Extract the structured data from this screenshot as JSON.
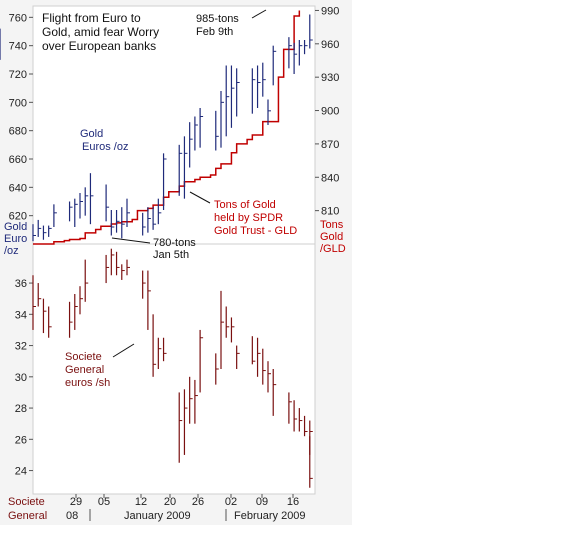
{
  "colors": {
    "panel_bg": "#f4f4f4",
    "frame": "#cfcfcf",
    "gold": "#1f2a7a",
    "gld_line": "#c00000",
    "socgen": "#7a1010",
    "text": "#111111",
    "axis_text": "#222222"
  },
  "chart_data": [
    {
      "type": "line",
      "title": "Flight from Euro to Gold, amid fear Worry over European banks",
      "title_lines": [
        "Flight from Euro to",
        "Gold, amid fear Worry",
        "over European banks"
      ],
      "left_axis_label_lines": [
        "Gold",
        "Euro",
        "/oz"
      ],
      "right_axis_label_lines": [
        "Tons",
        "Gold",
        "/GLD"
      ],
      "ylim_left": [
        600,
        768
      ],
      "ylim_right": [
        780,
        994
      ],
      "yticks_left": [
        620,
        640,
        660,
        680,
        700,
        720,
        740,
        760
      ],
      "yticks_right": [
        810,
        840,
        870,
        900,
        930,
        960,
        990
      ],
      "series": [
        {
          "name": "Gold Euros /oz",
          "label_lines": [
            "Gold",
            "Euros /oz"
          ],
          "style": "hlc",
          "values": [
            [
              602,
              614,
              606
            ],
            [
              605,
              617,
              611
            ],
            [
              603,
              613,
              608
            ],
            [
              605,
              613,
              611
            ],
            [
              612,
              628,
              622
            ],
            [
              616,
              630,
              626
            ],
            [
              612,
              632,
              628
            ],
            [
              618,
              636,
              630
            ],
            [
              620,
              640,
              634
            ],
            [
              614,
              650,
              634
            ],
            [
              616,
              642,
              626
            ],
            [
              606,
              624,
              612
            ],
            [
              608,
              624,
              616
            ],
            [
              604,
              626,
              614
            ],
            [
              612,
              632,
              622
            ],
            [
              606,
              622,
              612
            ],
            [
              608,
              626,
              618
            ],
            [
              610,
              626,
              614
            ],
            [
              614,
              632,
              622
            ],
            [
              624,
              664,
              660
            ],
            [
              634,
              670,
              664
            ],
            [
              632,
              676,
              664
            ],
            [
              654,
              686,
              674
            ],
            [
              666,
              690,
              684
            ],
            [
              668,
              696,
              690
            ],
            [
              666,
              694,
              676
            ],
            [
              668,
              708,
              700
            ],
            [
              676,
              726,
              704
            ],
            [
              682,
              726,
              710
            ],
            [
              690,
              724,
              714
            ],
            [
              692,
              724,
              716
            ],
            [
              696,
              726,
              714
            ],
            [
              704,
              728,
              716
            ],
            [
              684,
              702,
              694
            ],
            [
              712,
              740,
              736
            ],
            [
              724,
              746,
              740
            ],
            [
              720,
              742,
              734
            ],
            [
              726,
              744,
              740
            ],
            [
              734,
              744,
              740
            ],
            [
              738,
              762,
              744
            ],
            [
              730,
              752,
              736
            ]
          ]
        },
        {
          "name": "Tons of Gold held by SPDR Gold Trust - GLD",
          "label_lines": [
            "Tons of Gold",
            "held by SPDR",
            "Gold Trust - GLD"
          ],
          "style": "step",
          "values": [
            780,
            780,
            780,
            782,
            783,
            784,
            785,
            790,
            793,
            796,
            798,
            799,
            800,
            802,
            810,
            812,
            815,
            822,
            827,
            832,
            836,
            838,
            840,
            842,
            848,
            852,
            862,
            870,
            874,
            878,
            890,
            890,
            930,
            955,
            985,
            990
          ]
        }
      ],
      "annotations": [
        {
          "text_lines": [
            "985-tons",
            "Feb 9th"
          ],
          "value": 985
        },
        {
          "text_lines": [
            "780-tons",
            "Jan 5th"
          ],
          "value": 780
        }
      ]
    },
    {
      "type": "line",
      "ylim": [
        22.5,
        38.5
      ],
      "yticks": [
        24,
        26,
        28,
        30,
        32,
        34,
        36
      ],
      "series": [
        {
          "name": "Societe General euros /sh",
          "label_lines": [
            "Societe",
            "General",
            "euros /sh"
          ],
          "style": "hlc",
          "values": [
            [
              33,
              36.5,
              34.5
            ],
            [
              34.5,
              36,
              35
            ],
            [
              32.8,
              35,
              34.2
            ],
            [
              32.5,
              34.5,
              33.2
            ],
            [
              32.5,
              34.8,
              33.5
            ],
            [
              33,
              35.3,
              34.5
            ],
            [
              34,
              35.8,
              35
            ],
            [
              34.8,
              37.5,
              36
            ],
            [
              36,
              37.8,
              37
            ],
            [
              36.5,
              38.2,
              37.8
            ],
            [
              36.5,
              38,
              37
            ],
            [
              36.2,
              37.2,
              36.8
            ],
            [
              36.5,
              37.5,
              37
            ],
            [
              35,
              36.8,
              36
            ],
            [
              33,
              36.8,
              35.5
            ],
            [
              30,
              34,
              30.8
            ],
            [
              30.5,
              32.5,
              31.8
            ],
            [
              31,
              32.5,
              31.5
            ],
            [
              24.5,
              29,
              27.2
            ],
            [
              25,
              29.2,
              28
            ],
            [
              27,
              30,
              28.6
            ],
            [
              27,
              29.8,
              28.8
            ],
            [
              29,
              33,
              32.5
            ],
            [
              29.5,
              31.5,
              30.5
            ],
            [
              30.5,
              35.5,
              33.5
            ],
            [
              32.5,
              34.5,
              33.2
            ],
            [
              32.2,
              33.8,
              33.2
            ],
            [
              30.5,
              32,
              31.5
            ],
            [
              30.8,
              32.6,
              31
            ],
            [
              30,
              32.5,
              31.5
            ],
            [
              29.5,
              31.8,
              30.4
            ],
            [
              29,
              31,
              30.2
            ],
            [
              27.5,
              30.5,
              29.5
            ],
            [
              27,
              29,
              28.4
            ],
            [
              26.5,
              28.5,
              27.3
            ],
            [
              26.5,
              28,
              27.2
            ],
            [
              26.2,
              27.5,
              26.5
            ],
            [
              25,
              27.2,
              26.5
            ],
            [
              22.9,
              26.2,
              23.5
            ]
          ]
        }
      ],
      "x_tick_labels": [
        "29",
        "05",
        "12",
        "20",
        "26",
        "02",
        "09",
        "16"
      ],
      "x_period_labels": [
        "08",
        "January 2009",
        "February 2009"
      ],
      "corner_label_lines": [
        "Societe",
        "General"
      ]
    }
  ]
}
